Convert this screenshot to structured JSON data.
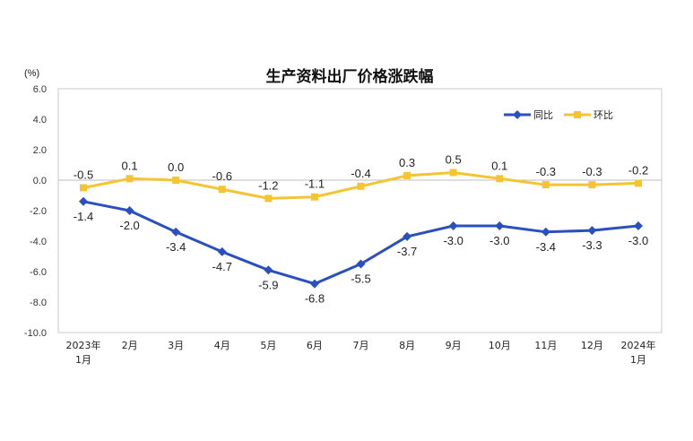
{
  "chart_data": {
    "type": "line",
    "title": "生产资料出厂价格涨跌幅",
    "unit": "(%)",
    "ylim": [
      -10.0,
      6.0
    ],
    "ytick_labels": [
      "6.0",
      "4.0",
      "2.0",
      "0.0",
      "-2.0",
      "-4.0",
      "-6.0",
      "-8.0",
      "-10.0"
    ],
    "yticks": [
      6,
      4,
      2,
      0,
      -2,
      -4,
      -6,
      -8,
      -10
    ],
    "categories": [
      [
        "2023年",
        "1月"
      ],
      [
        "2月"
      ],
      [
        "3月"
      ],
      [
        "4月"
      ],
      [
        "5月"
      ],
      [
        "6月"
      ],
      [
        "7月"
      ],
      [
        "8月"
      ],
      [
        "9月"
      ],
      [
        "10月"
      ],
      [
        "11月"
      ],
      [
        "12月"
      ],
      [
        "2024年",
        "1月"
      ]
    ],
    "legend_position": "top-right",
    "series": [
      {
        "name": "同比",
        "color": "#2a4fbf",
        "marker": "diamond",
        "values": [
          -1.4,
          -2.0,
          -3.4,
          -4.7,
          -5.9,
          -6.8,
          -5.5,
          -3.7,
          -3.0,
          -3.0,
          -3.4,
          -3.3,
          -3.0
        ],
        "labels": [
          "-1.4",
          "-2.0",
          "-3.4",
          "-4.7",
          "-5.9",
          "-6.8",
          "-5.5",
          "-3.7",
          "-3.0",
          "-3.0",
          "-3.4",
          "-3.3",
          "-3.0"
        ]
      },
      {
        "name": "环比",
        "color": "#f5c432",
        "marker": "square",
        "values": [
          -0.5,
          0.1,
          0.0,
          -0.6,
          -1.2,
          -1.1,
          -0.4,
          0.3,
          0.5,
          0.1,
          -0.3,
          -0.3,
          -0.2
        ],
        "labels": [
          "-0.5",
          "0.1",
          "0.0",
          "-0.6",
          "-1.2",
          "-1.1",
          "-0.4",
          "0.3",
          "0.5",
          "0.1",
          "-0.3",
          "-0.3",
          "-0.2"
        ]
      }
    ],
    "grid": false,
    "zero_line": true
  }
}
